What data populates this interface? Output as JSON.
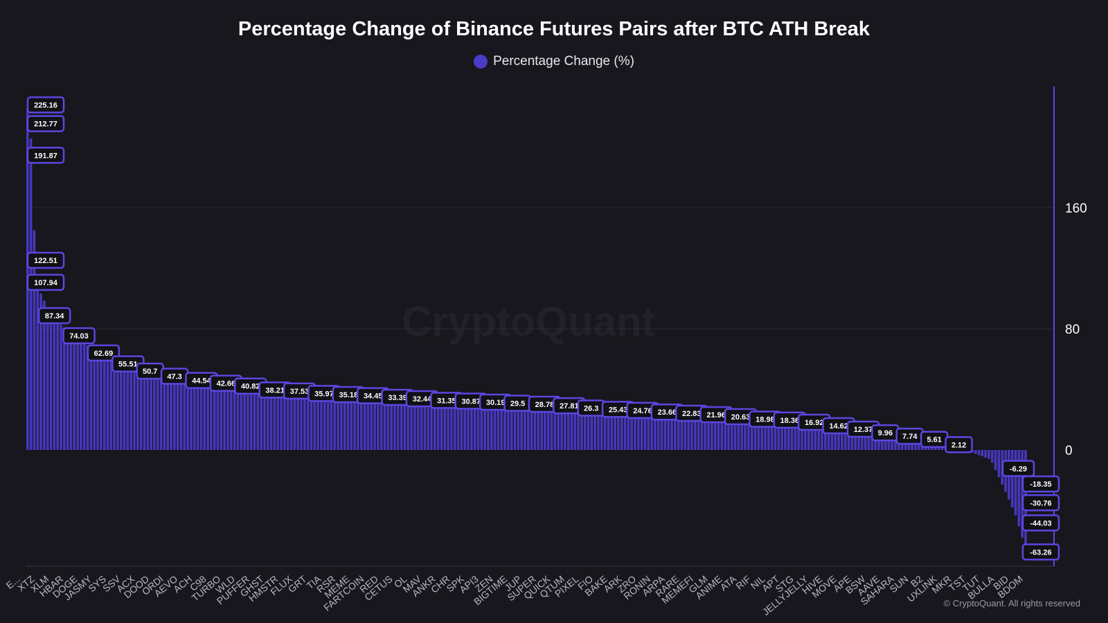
{
  "title": "Percentage Change of Binance Futures Pairs after BTC ATH Break",
  "legend": {
    "label": "Percentage Change (%)",
    "color": "#4b3bc9"
  },
  "watermark": "CryptoQuant",
  "footer": "© CryptoQuant. All rights reserved",
  "colors": {
    "bar": "#4b3bc9",
    "label_border": "#5b47e0",
    "label_bg": "#111116",
    "axis": "#5b47e0",
    "grid": "#2a2a32",
    "tick_text": "#ffffff",
    "category_text": "#b8b8c2"
  },
  "chart_data": {
    "type": "bar",
    "title": "Percentage Change of Binance Futures Pairs after BTC ATH Break",
    "series_name": "Percentage Change (%)",
    "xlabel": "",
    "ylabel": "",
    "ylim": [
      -78,
      240
    ],
    "y_ticks": [
      0,
      80,
      160
    ],
    "y_axis_position": "right",
    "grid": true,
    "legend_position": "top-center",
    "categories": [
      "E...",
      "XTZ",
      "XLM",
      "HBAR",
      "DOGE",
      "JASMY",
      "SYS",
      "SSV",
      "ACX",
      "DOOD",
      "ORDI",
      "AEVO",
      "ACH",
      "C98",
      "TURBO",
      "WLD",
      "PUFFER",
      "GHST",
      "HMSTR",
      "FLUX",
      "GRT",
      "TIA",
      "RSR",
      "MEME",
      "FARTCOIN",
      "RED",
      "CETUS",
      "OL",
      "MAV",
      "ANKR",
      "CHR",
      "SPK",
      "API3",
      "ZEN",
      "BIGTIME",
      "JUP",
      "SUPER",
      "QUICK",
      "QTUM",
      "PIXEL",
      "FIO",
      "BAKE",
      "ARK",
      "ZRO",
      "RONIN",
      "ARPA",
      "RARE",
      "MEMEFI",
      "GLM",
      "ANIME",
      "ATA",
      "RIF",
      "NIL",
      "APT",
      "STG",
      "JELLYJELLY",
      "HIVE",
      "MOVE",
      "APE",
      "BSW",
      "AAVE",
      "SAHARA",
      "SUN",
      "B2",
      "UXLINK",
      "MKR",
      "TST",
      "TUT",
      "BULLA",
      "BID",
      "BDOM"
    ],
    "labeled_values": [
      225.16,
      212.77,
      191.87,
      122.51,
      107.94,
      87.34,
      74.03,
      62.69,
      55.51,
      50.7,
      47.3,
      44.54,
      42.66,
      40.82,
      38.21,
      37.53,
      35.97,
      35.18,
      34.45,
      33.39,
      32.44,
      31.35,
      30.87,
      30.19,
      29.5,
      28.78,
      27.81,
      26.3,
      25.43,
      24.76,
      23.66,
      22.83,
      21.96,
      20.63,
      18.98,
      18.36,
      16.92,
      14.62,
      12.37,
      9.96,
      7.74,
      5.61,
      2.12,
      -6.29,
      -18.35,
      -30.76,
      -44.03,
      -63.26
    ]
  }
}
